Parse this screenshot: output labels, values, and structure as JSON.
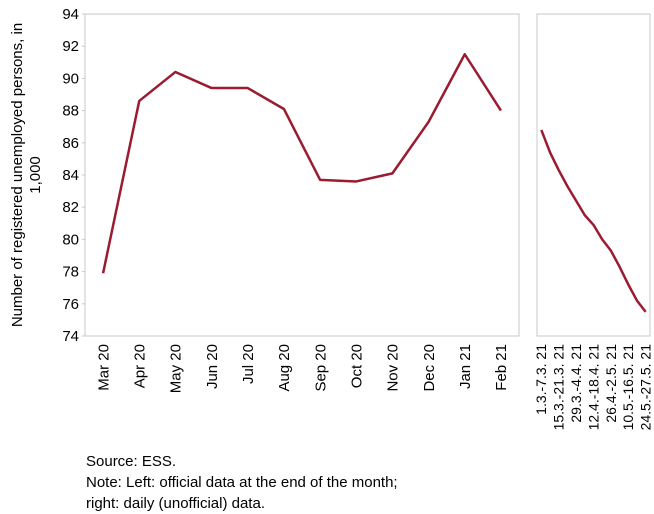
{
  "chart_data": [
    {
      "type": "line",
      "ylabel": [
        "Number of registered unemployed persons, in",
        "1,000"
      ],
      "categories": [
        "Mar 20",
        "Apr 20",
        "May 20",
        "Jun 20",
        "Jul 20",
        "Aug 20",
        "Sep 20",
        "Oct 20",
        "Nov 20",
        "Dec 20",
        "Jan 21",
        "Feb 21"
      ],
      "values": [
        77.9,
        88.6,
        90.4,
        89.4,
        89.4,
        88.1,
        83.7,
        83.6,
        84.1,
        87.3,
        91.5,
        88.0
      ],
      "color": "#9b1b30",
      "ylim": [
        74,
        94
      ],
      "yticks": [
        74,
        76,
        78,
        80,
        82,
        84,
        86,
        88,
        90,
        92,
        94
      ]
    },
    {
      "type": "line",
      "categories": [
        "1.3.-7.3. 21",
        null,
        "15.3.-21.3. 21",
        null,
        "29.3.-4.4. 21",
        null,
        "12.4.-18.4. 21",
        null,
        "26.4.-2.5. 21",
        null,
        "10.5.-16.5. 21",
        null,
        "24.5.-27.5. 21"
      ],
      "values": [
        86.8,
        85.4,
        84.3,
        83.3,
        82.4,
        81.5,
        80.9,
        80.0,
        79.3,
        78.3,
        77.2,
        76.2,
        75.5
      ],
      "color": "#9b1b30",
      "ylim": [
        74,
        94
      ]
    }
  ],
  "notes": [
    "Source: ESS.",
    "Note: Left: official data at the end of the month;",
    "right: daily (unofficial) data."
  ]
}
